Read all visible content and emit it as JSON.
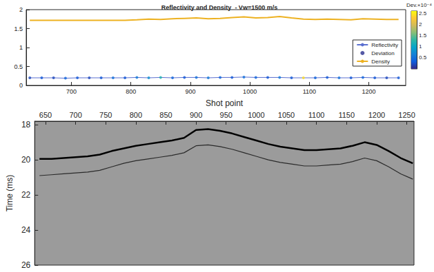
{
  "chart_data": [
    {
      "type": "line",
      "title": "Reflectivity and Density  - Vw=1500 m/s",
      "x": [
        630,
        650,
        670,
        690,
        710,
        730,
        750,
        770,
        790,
        810,
        830,
        850,
        870,
        890,
        910,
        930,
        950,
        970,
        990,
        1010,
        1030,
        1050,
        1070,
        1090,
        1110,
        1130,
        1150,
        1170,
        1190,
        1210,
        1230,
        1250
      ],
      "series": [
        {
          "name": "Reflectivity",
          "type": "line",
          "color": "#5a6fd0",
          "values": [
            0.2,
            0.2,
            0.2,
            0.19,
            0.2,
            0.2,
            0.2,
            0.2,
            0.2,
            0.21,
            0.2,
            0.21,
            0.2,
            0.21,
            0.21,
            0.2,
            0.21,
            0.21,
            0.22,
            0.21,
            0.21,
            0.21,
            0.2,
            0.2,
            0.2,
            0.21,
            0.2,
            0.2,
            0.21,
            0.2,
            0.2,
            0.2
          ]
        },
        {
          "name": "Deviation",
          "type": "scatter",
          "marker": "circle",
          "color": "#2b2f8f",
          "values": [
            0.2,
            0.2,
            0.2,
            0.19,
            0.2,
            0.2,
            0.2,
            0.2,
            0.2,
            0.21,
            0.2,
            0.21,
            0.2,
            0.21,
            0.21,
            0.2,
            0.21,
            0.21,
            0.22,
            0.21,
            0.21,
            0.21,
            0.2,
            0.2,
            0.2,
            0.21,
            0.2,
            0.2,
            0.21,
            0.2,
            0.2,
            0.2
          ],
          "deviation": [
            0.2,
            0.3,
            0.2,
            0.4,
            0.3,
            0.2,
            0.3,
            0.5,
            0.3,
            0.6,
            0.8,
            1.2,
            0.4,
            0.3,
            0.5,
            0.6,
            0.4,
            0.3,
            0.5,
            0.4,
            0.3,
            0.6,
            0.3,
            2.4,
            0.4,
            0.3,
            0.5,
            0.3,
            0.4,
            0.3,
            0.2,
            0.3
          ]
        },
        {
          "name": "Density",
          "type": "line",
          "color": "#edb120",
          "values": [
            1.72,
            1.72,
            1.72,
            1.72,
            1.72,
            1.72,
            1.72,
            1.72,
            1.72,
            1.73,
            1.75,
            1.74,
            1.76,
            1.77,
            1.78,
            1.76,
            1.77,
            1.79,
            1.81,
            1.78,
            1.79,
            1.82,
            1.78,
            1.75,
            1.74,
            1.75,
            1.74,
            1.73,
            1.76,
            1.75,
            1.74,
            1.74
          ]
        }
      ],
      "xlim": [
        624,
        1262
      ],
      "xticks": [
        700,
        800,
        900,
        1000,
        1100,
        1200
      ],
      "ylim": [
        0,
        2
      ],
      "yticks": [
        0,
        0.5,
        1,
        1.5,
        2
      ],
      "grid": false,
      "legend": "right",
      "colorbar": {
        "label": "Dev.×10⁻⁴",
        "range": [
          0,
          2.6
        ],
        "ticks": [
          0.5,
          1,
          1.5,
          2,
          2.5
        ]
      }
    },
    {
      "type": "line",
      "xlabel": "Shot point",
      "ylabel": "Time (ms)",
      "x": [
        640,
        660,
        680,
        700,
        720,
        740,
        760,
        780,
        800,
        820,
        840,
        860,
        880,
        900,
        920,
        940,
        960,
        980,
        1000,
        1020,
        1040,
        1060,
        1080,
        1100,
        1120,
        1140,
        1160,
        1180,
        1200,
        1220,
        1240,
        1260
      ],
      "series": [
        {
          "color": "#000000",
          "values": [
            19.95,
            19.95,
            19.9,
            19.85,
            19.8,
            19.7,
            19.5,
            19.35,
            19.2,
            19.1,
            19.0,
            18.9,
            18.75,
            18.3,
            18.25,
            18.35,
            18.5,
            18.7,
            18.9,
            19.1,
            19.25,
            19.35,
            19.45,
            19.45,
            19.4,
            19.35,
            19.2,
            19.0,
            19.15,
            19.5,
            19.9,
            20.2
          ]
        },
        {
          "color": "#2a2a2a",
          "values": [
            20.9,
            20.85,
            20.8,
            20.75,
            20.7,
            20.6,
            20.4,
            20.2,
            20.05,
            19.95,
            19.85,
            19.75,
            19.6,
            19.2,
            19.15,
            19.25,
            19.4,
            19.6,
            19.8,
            20.0,
            20.15,
            20.25,
            20.35,
            20.35,
            20.3,
            20.25,
            20.1,
            19.9,
            20.05,
            20.4,
            20.8,
            21.1
          ]
        }
      ],
      "xlim": [
        632,
        1262
      ],
      "xticks": [
        650,
        700,
        750,
        800,
        850,
        900,
        950,
        1000,
        1050,
        1100,
        1150,
        1200,
        1250
      ],
      "ylim": [
        17.8,
        26
      ],
      "yticks": [
        18,
        20,
        22,
        24,
        26
      ],
      "grid": false
    }
  ]
}
